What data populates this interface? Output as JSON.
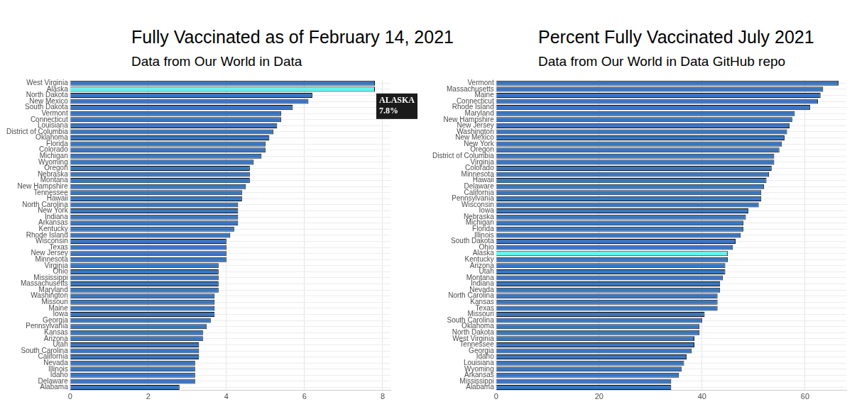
{
  "chart_data": [
    {
      "type": "bar",
      "orientation": "horizontal",
      "title": "Fully Vaccinated as of February 14, 2021",
      "subtitle": "Data from Our World in Data",
      "categories": [
        "West Virginia",
        "Alaska",
        "North Dakota",
        "New Mexico",
        "South Dakota",
        "Vermont",
        "Connecticut",
        "Louisiana",
        "District of Columbia",
        "Oklahoma",
        "Florida",
        "Colorado",
        "Michigan",
        "Wyoming",
        "Oregon",
        "Nebraska",
        "Montana",
        "New Hampshire",
        "Tennessee",
        "Hawaii",
        "North Carolina",
        "New York",
        "Indiana",
        "Arkansas",
        "Kentucky",
        "Rhode Island",
        "Wisconsin",
        "Texas",
        "New Jersey",
        "Minnesota",
        "Virginia",
        "Ohio",
        "Mississippi",
        "Massachusetts",
        "Maryland",
        "Washington",
        "Missouri",
        "Maine",
        "Iowa",
        "Georgia",
        "Pennsylvania",
        "Kansas",
        "Arizona",
        "Utah",
        "South Carolina",
        "California",
        "Nevada",
        "Illinois",
        "Idaho",
        "Delaware",
        "Alabama"
      ],
      "values": [
        7.8,
        7.8,
        6.2,
        6.1,
        5.7,
        5.4,
        5.4,
        5.3,
        5.2,
        5.1,
        5.0,
        5.0,
        4.9,
        4.7,
        4.6,
        4.6,
        4.6,
        4.5,
        4.4,
        4.4,
        4.3,
        4.3,
        4.3,
        4.3,
        4.2,
        4.1,
        4.0,
        4.0,
        4.0,
        4.0,
        3.8,
        3.8,
        3.8,
        3.8,
        3.8,
        3.7,
        3.7,
        3.7,
        3.7,
        3.6,
        3.5,
        3.4,
        3.4,
        3.3,
        3.3,
        3.3,
        3.2,
        3.2,
        3.2,
        3.2,
        2.8
      ],
      "colors": [
        "#3a76c0",
        "#62f4f2",
        "#3a76c0",
        "#3a76c0",
        "#3a76c0",
        "#3a76c0",
        "#3a76c0",
        "#3a76c0",
        "#3a76c0",
        "#3a76c0",
        "#3a76c0",
        "#3a76c0",
        "#3a76c0",
        "#3a76c0",
        "#3a76c0",
        "#3a76c0",
        "#3a76c0",
        "#3a76c0",
        "#3a76c0",
        "#3a76c0",
        "#3a76c0",
        "#3a76c0",
        "#3a76c0",
        "#3a76c0",
        "#3a76c0",
        "#3a76c0",
        "#3a76c0",
        "#3a76c0",
        "#3a76c0",
        "#3a76c0",
        "#3a76c0",
        "#3a76c0",
        "#3a76c0",
        "#3a76c0",
        "#3a76c0",
        "#3a76c0",
        "#3a76c0",
        "#3a76c0",
        "#3a76c0",
        "#3a76c0",
        "#3a76c0",
        "#3a76c0",
        "#3a76c0",
        "#3a76c0",
        "#3a76c0",
        "#3a76c0",
        "#3a76c0",
        "#3a76c0",
        "#3a76c0",
        "#3a76c0",
        "#3a76c0"
      ],
      "xlim": [
        0,
        8.2
      ],
      "xticks": [
        0,
        2,
        4,
        6,
        8
      ],
      "grid": true,
      "annotation": {
        "category": "Alaska",
        "text": [
          "ALASKA",
          "7.8%"
        ]
      }
    },
    {
      "type": "bar",
      "orientation": "horizontal",
      "title": "Percent Fully Vaccinated July 2021",
      "subtitle": "Data from Our World in Data GitHub repo",
      "categories": [
        "Vermont",
        "Massachusetts",
        "Maine",
        "Connecticut",
        "Rhode Island",
        "Maryland",
        "New Hampshire",
        "New Jersey",
        "Washington",
        "New Mexico",
        "New York",
        "Oregon",
        "District of Columbia",
        "Virginia",
        "Colorado",
        "Minnesota",
        "Hawaii",
        "Delaware",
        "California",
        "Pennsylvania",
        "Wisconsin",
        "Iowa",
        "Nebraska",
        "Michigan",
        "Florida",
        "Illinois",
        "South Dakota",
        "Ohio",
        "Alaska",
        "Kentucky",
        "Arizona",
        "Utah",
        "Montana",
        "Indiana",
        "Nevada",
        "North Carolina",
        "Kansas",
        "Texas",
        "Missouri",
        "South Carolina",
        "Oklahoma",
        "North Dakota",
        "West Virginia",
        "Tennessee",
        "Georgia",
        "Idaho",
        "Louisiana",
        "Wyoming",
        "Arkansas",
        "Mississippi",
        "Alabama"
      ],
      "values": [
        66.5,
        63.5,
        63,
        62.5,
        61,
        58,
        57.5,
        57,
        56.5,
        56,
        55.5,
        55,
        54,
        54,
        53.5,
        53,
        52.5,
        52,
        51.5,
        51.5,
        51,
        49,
        48.5,
        48,
        48,
        47.5,
        46.5,
        46,
        45,
        45,
        44.5,
        44.5,
        44,
        43.5,
        43.5,
        43,
        43,
        43,
        40.5,
        40,
        39.5,
        39.5,
        38.5,
        38.5,
        38,
        37,
        36.5,
        36,
        35.5,
        34,
        34
      ],
      "colors": [
        "#3a76c0",
        "#3a76c0",
        "#3a76c0",
        "#3a76c0",
        "#3a76c0",
        "#3a76c0",
        "#3a76c0",
        "#3a76c0",
        "#3a76c0",
        "#3a76c0",
        "#3a76c0",
        "#3a76c0",
        "#3a76c0",
        "#3a76c0",
        "#3a76c0",
        "#3a76c0",
        "#3a76c0",
        "#3a76c0",
        "#3a76c0",
        "#3a76c0",
        "#3a76c0",
        "#3a76c0",
        "#3a76c0",
        "#3a76c0",
        "#3a76c0",
        "#3a76c0",
        "#3a76c0",
        "#3a76c0",
        "#62f4f2",
        "#3a76c0",
        "#3a76c0",
        "#3a76c0",
        "#3a76c0",
        "#3a76c0",
        "#3a76c0",
        "#3a76c0",
        "#3a76c0",
        "#3a76c0",
        "#3a76c0",
        "#3a76c0",
        "#3a76c0",
        "#3a76c0",
        "#3a76c0",
        "#3a76c0",
        "#3a76c0",
        "#3a76c0",
        "#3a76c0",
        "#3a76c0",
        "#3a76c0",
        "#3a76c0",
        "#3a76c0"
      ],
      "xlim": [
        0,
        68
      ],
      "xticks": [
        0,
        20,
        40,
        60
      ],
      "grid": true
    }
  ]
}
